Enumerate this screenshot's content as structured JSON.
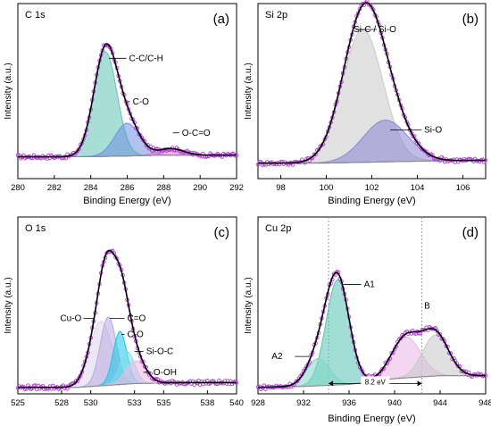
{
  "chart_data": [
    {
      "type": "area",
      "panel_tag": "(a)",
      "title": "C 1s",
      "xlabel": "Binding Energy (eV)",
      "ylabel": "Intensity (a.u.)",
      "xlim": [
        280,
        292
      ],
      "x_ticks": [
        280,
        282,
        284,
        286,
        288,
        290,
        292
      ],
      "x_tick_labels": [
        "280",
        "282",
        "284",
        "286",
        "288",
        "290",
        "292"
      ],
      "background": [
        [
          280,
          0.035
        ],
        [
          282,
          0.035
        ],
        [
          284,
          0.036
        ],
        [
          286,
          0.04
        ],
        [
          288,
          0.045
        ],
        [
          290,
          0.045
        ],
        [
          292,
          0.045
        ]
      ],
      "components": [
        {
          "label": "C-C/C-H",
          "center": 284.8,
          "height": 0.64,
          "fwhm": 1.5,
          "color": "#5ec4b5",
          "label_x": 286.1,
          "label_y": 0.62,
          "leader_x": 285.0
        },
        {
          "label": "C-O",
          "center": 286.0,
          "height": 0.2,
          "fwhm": 1.6,
          "color": "#6f8fe0",
          "label_x": 286.3,
          "label_y": 0.355,
          "leader_x": 286.0
        },
        {
          "label": "O-C=O",
          "center": 288.4,
          "height": 0.04,
          "fwhm": 1.6,
          "color": "#d67ad6",
          "label_x": 289.0,
          "label_y": 0.165,
          "leader_x": 288.5
        }
      ]
    },
    {
      "type": "area",
      "panel_tag": "(b)",
      "title": "Si 2p",
      "xlabel": "Binding Energy (eV)",
      "ylabel": "Intensity (a.u.)",
      "xlim": [
        97,
        107
      ],
      "x_ticks": [
        98,
        100,
        102,
        104,
        106
      ],
      "x_tick_labels": [
        "98",
        "100",
        "102",
        "104",
        "106"
      ],
      "background": [
        [
          97,
          0.03
        ],
        [
          100,
          0.03
        ],
        [
          102,
          0.035
        ],
        [
          104,
          0.04
        ],
        [
          107,
          0.045
        ]
      ],
      "components": [
        {
          "label": "Si-C / Si-O",
          "center": 101.6,
          "height": 0.7,
          "fwhm": 2.1,
          "color": "#c9c9c9",
          "label_x": 101.2,
          "label_y": 0.72,
          "leader_x": 101.3
        },
        {
          "label": "Si-O",
          "center": 102.6,
          "height": 0.22,
          "fwhm": 2.3,
          "color": "#8a86d6",
          "label_x": 104.3,
          "label_y": 0.19,
          "leader_x": 102.8
        }
      ]
    },
    {
      "type": "area",
      "panel_tag": "(c)",
      "title": "O 1s",
      "xlabel": "",
      "ylabel": "Intensity (a.u.)",
      "xlim": [
        525,
        540
      ],
      "x_ticks": [
        525,
        528,
        530,
        533,
        535,
        538,
        540
      ],
      "x_tick_labels": [
        "525",
        "528",
        "530",
        "533",
        "535",
        "538",
        "540"
      ],
      "background": [
        [
          525,
          0.02
        ],
        [
          529,
          0.02
        ],
        [
          531,
          0.03
        ],
        [
          533,
          0.04
        ],
        [
          536,
          0.045
        ],
        [
          540,
          0.045
        ]
      ],
      "components": [
        {
          "label": "Cu-O",
          "center": 530.7,
          "height": 0.34,
          "fwhm": 1.8,
          "color": "#dcd6ec",
          "label_x": 527.9,
          "label_y": 0.37,
          "leader_x": 530.2
        },
        {
          "label": "C=O",
          "center": 531.2,
          "height": 0.36,
          "fwhm": 1.3,
          "color": "#b8aae0",
          "label_x": 532.5,
          "label_y": 0.37,
          "leader_x": 531.3
        },
        {
          "label": "C-O",
          "center": 532.0,
          "height": 0.28,
          "fwhm": 1.1,
          "color": "#17c8e8",
          "label_x": 532.5,
          "label_y": 0.285,
          "leader_x": 532.1
        },
        {
          "label": "Si-O-C",
          "center": 532.5,
          "height": 0.17,
          "fwhm": 1.2,
          "color": "#7fdcea",
          "label_x": 533.8,
          "label_y": 0.195,
          "leader_x": 533.0
        },
        {
          "label": "O-OH",
          "center": 533.1,
          "height": 0.12,
          "fwhm": 1.6,
          "color": "#f4b6e2",
          "label_x": 534.3,
          "label_y": 0.085,
          "leader_x": 533.6
        }
      ]
    },
    {
      "type": "area",
      "panel_tag": "(d)",
      "title": "Cu 2p",
      "xlabel": "Binding Energy (eV)",
      "ylabel": "Intensity (a.u.)",
      "xlim": [
        928,
        948
      ],
      "x_ticks": [
        928,
        932,
        936,
        940,
        944,
        948
      ],
      "x_tick_labels": [
        "928",
        "932",
        "936",
        "940",
        "944",
        "948"
      ],
      "background": [
        [
          928,
          0.015
        ],
        [
          932,
          0.02
        ],
        [
          936,
          0.03
        ],
        [
          940,
          0.06
        ],
        [
          944,
          0.075
        ],
        [
          948,
          0.075
        ]
      ],
      "components": [
        {
          "label": "A1",
          "center": 935.0,
          "height": 0.54,
          "fwhm": 2.4,
          "color": "#55c3b4",
          "label_x": 937.3,
          "label_y": 0.53,
          "leader_x": 935.5
        },
        {
          "label": "A2",
          "center": 933.3,
          "height": 0.14,
          "fwhm": 2.4,
          "color": "#7fd6c7",
          "label_x": 929.2,
          "label_y": 0.16,
          "leader_x": 932.5
        },
        {
          "label": "",
          "center": 941.0,
          "height": 0.21,
          "fwhm": 3.0,
          "color": "#e9b6e6",
          "label_x": null,
          "label_y": null,
          "leader_x": null
        },
        {
          "label": "",
          "center": 943.6,
          "height": 0.21,
          "fwhm": 2.7,
          "color": "#c6c6c6",
          "label_x": null,
          "label_y": null,
          "leader_x": null
        }
      ],
      "extra_labels": [
        {
          "text": "B",
          "x": 942.6,
          "y": 0.42
        }
      ],
      "reference_lines": [
        934.2,
        942.4
      ],
      "spacing": {
        "text": "8.2 eV",
        "from": 934.2,
        "to": 942.4,
        "y": 0.035
      }
    }
  ]
}
